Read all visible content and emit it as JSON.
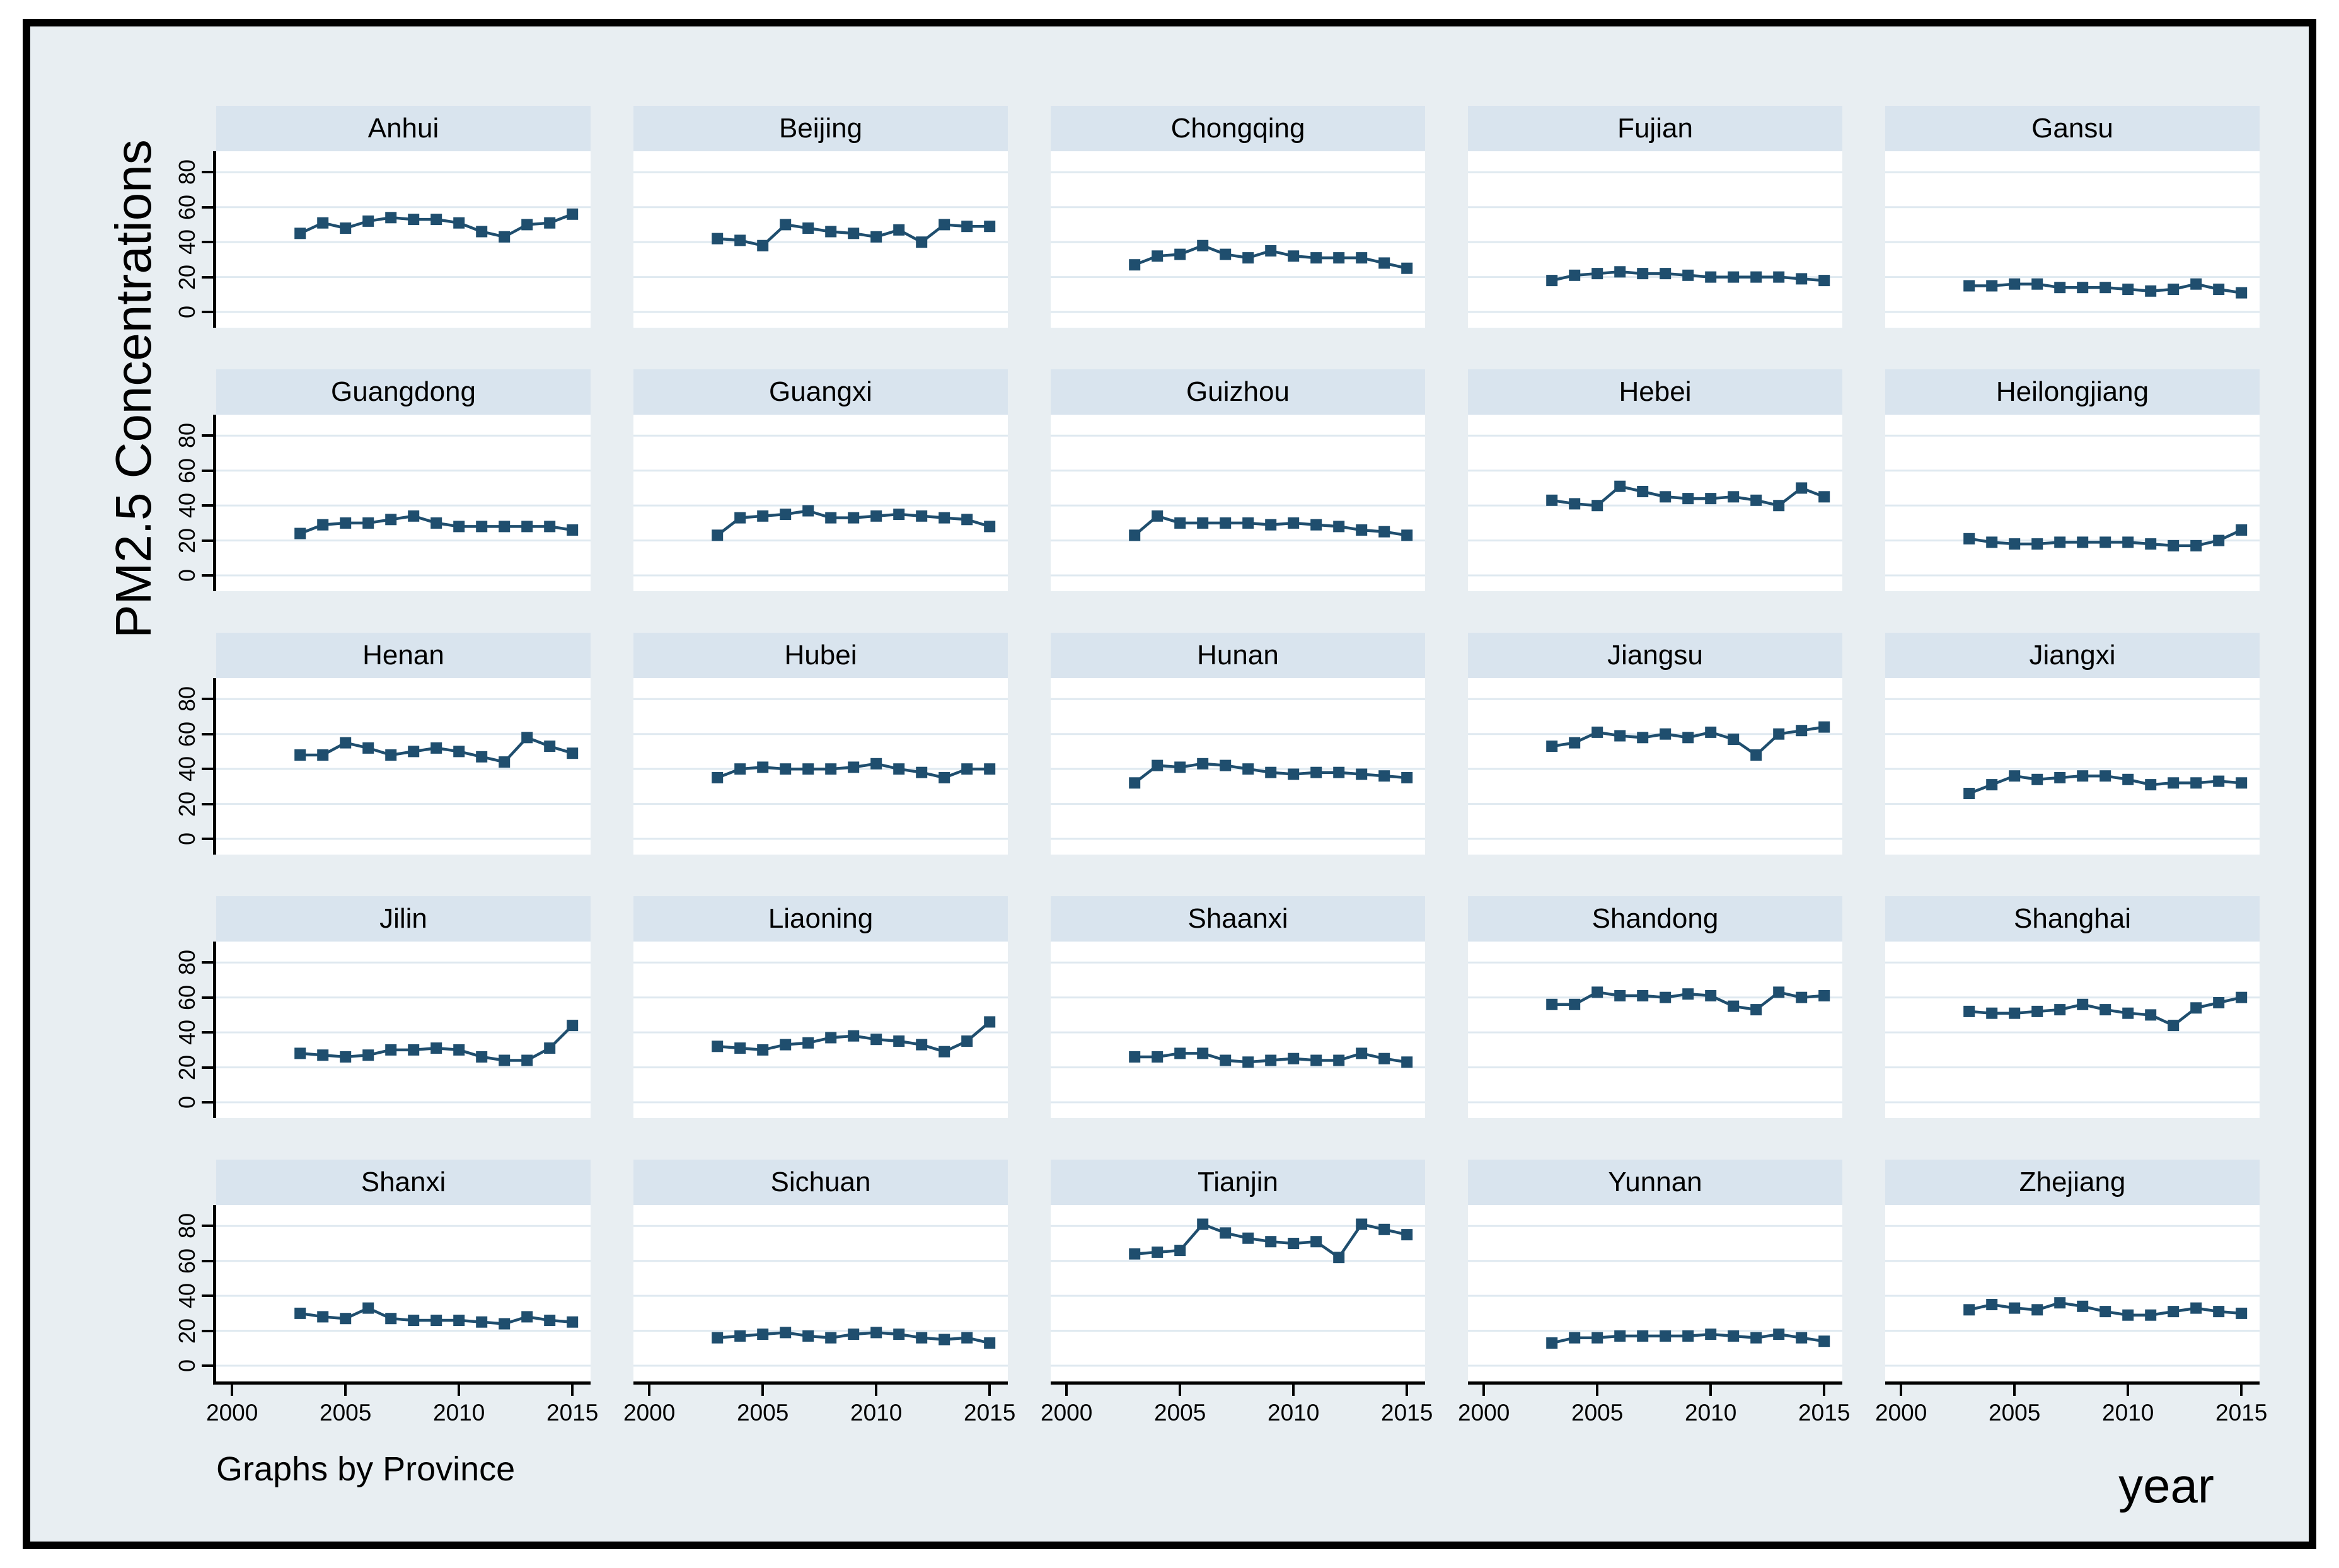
{
  "chart_data": {
    "type": "line",
    "layout": "small-multiples-5x5",
    "title": "",
    "ylabel": "PM2.5 Concentrations",
    "xlabel": "year",
    "note": "Graphs by Province",
    "grid": "horizontal",
    "marker": "square",
    "line_color": "#1f4e6e",
    "grid_color": "#dfe9f0",
    "panel_header_color": "#d9e4ee",
    "background_color": "#e8eef2",
    "x": [
      2003,
      2004,
      2005,
      2006,
      2007,
      2008,
      2009,
      2010,
      2011,
      2012,
      2013,
      2014,
      2015
    ],
    "x_ticks": [
      2000,
      2005,
      2010,
      2015
    ],
    "y_ticks": [
      0,
      20,
      40,
      60,
      80
    ],
    "xlim": [
      1999.3,
      2015.8
    ],
    "ylim": [
      -9,
      92
    ],
    "series": [
      {
        "name": "Anhui",
        "values": [
          45,
          51,
          48,
          52,
          54,
          53,
          53,
          51,
          46,
          43,
          50,
          51,
          56
        ]
      },
      {
        "name": "Beijing",
        "values": [
          42,
          41,
          38,
          50,
          48,
          46,
          45,
          43,
          47,
          40,
          50,
          49,
          49
        ]
      },
      {
        "name": "Chongqing",
        "values": [
          27,
          32,
          33,
          38,
          33,
          31,
          35,
          32,
          31,
          31,
          31,
          28,
          25
        ]
      },
      {
        "name": "Fujian",
        "values": [
          18,
          21,
          22,
          23,
          22,
          22,
          21,
          20,
          20,
          20,
          20,
          19,
          18
        ]
      },
      {
        "name": "Gansu",
        "values": [
          15,
          15,
          16,
          16,
          14,
          14,
          14,
          13,
          12,
          13,
          16,
          13,
          11
        ]
      },
      {
        "name": "Guangdong",
        "values": [
          24,
          29,
          30,
          30,
          32,
          34,
          30,
          28,
          28,
          28,
          28,
          28,
          26
        ]
      },
      {
        "name": "Guangxi",
        "values": [
          23,
          33,
          34,
          35,
          37,
          33,
          33,
          34,
          35,
          34,
          33,
          32,
          28
        ]
      },
      {
        "name": "Guizhou",
        "values": [
          23,
          34,
          30,
          30,
          30,
          30,
          29,
          30,
          29,
          28,
          26,
          25,
          23
        ]
      },
      {
        "name": "Hebei",
        "values": [
          43,
          41,
          40,
          51,
          48,
          45,
          44,
          44,
          45,
          43,
          40,
          50,
          45
        ]
      },
      {
        "name": "Heilongjiang",
        "values": [
          21,
          19,
          18,
          18,
          19,
          19,
          19,
          19,
          18,
          17,
          17,
          20,
          26
        ]
      },
      {
        "name": "Henan",
        "values": [
          48,
          48,
          55,
          52,
          48,
          50,
          52,
          50,
          47,
          44,
          58,
          53,
          49
        ]
      },
      {
        "name": "Hubei",
        "values": [
          35,
          40,
          41,
          40,
          40,
          40,
          41,
          43,
          40,
          38,
          35,
          40,
          40
        ]
      },
      {
        "name": "Hunan",
        "values": [
          32,
          42,
          41,
          43,
          42,
          40,
          38,
          37,
          38,
          38,
          37,
          36,
          35
        ]
      },
      {
        "name": "Jiangsu",
        "values": [
          53,
          55,
          61,
          59,
          58,
          60,
          58,
          61,
          57,
          48,
          60,
          62,
          64
        ]
      },
      {
        "name": "Jiangxi",
        "values": [
          26,
          31,
          36,
          34,
          35,
          36,
          36,
          34,
          31,
          32,
          32,
          33,
          32
        ]
      },
      {
        "name": "Jilin",
        "values": [
          28,
          27,
          26,
          27,
          30,
          30,
          31,
          30,
          26,
          24,
          24,
          31,
          44
        ]
      },
      {
        "name": "Liaoning",
        "values": [
          32,
          31,
          30,
          33,
          34,
          37,
          38,
          36,
          35,
          33,
          29,
          35,
          46
        ]
      },
      {
        "name": "Shaanxi",
        "values": [
          26,
          26,
          28,
          28,
          24,
          23,
          24,
          25,
          24,
          24,
          28,
          25,
          23
        ]
      },
      {
        "name": "Shandong",
        "values": [
          56,
          56,
          63,
          61,
          61,
          60,
          62,
          61,
          55,
          53,
          63,
          60,
          61
        ]
      },
      {
        "name": "Shanghai",
        "values": [
          52,
          51,
          51,
          52,
          53,
          56,
          53,
          51,
          50,
          44,
          54,
          57,
          60
        ]
      },
      {
        "name": "Shanxi",
        "values": [
          30,
          28,
          27,
          33,
          27,
          26,
          26,
          26,
          25,
          24,
          28,
          26,
          25
        ]
      },
      {
        "name": "Sichuan",
        "values": [
          16,
          17,
          18,
          19,
          17,
          16,
          18,
          19,
          18,
          16,
          15,
          16,
          13
        ]
      },
      {
        "name": "Tianjin",
        "values": [
          64,
          65,
          66,
          81,
          76,
          73,
          71,
          70,
          71,
          62,
          81,
          78,
          75
        ]
      },
      {
        "name": "Yunnan",
        "values": [
          13,
          16,
          16,
          17,
          17,
          17,
          17,
          18,
          17,
          16,
          18,
          16,
          14
        ]
      },
      {
        "name": "Zhejiang",
        "values": [
          32,
          35,
          33,
          32,
          36,
          34,
          31,
          29,
          29,
          31,
          33,
          31,
          30
        ]
      }
    ]
  }
}
